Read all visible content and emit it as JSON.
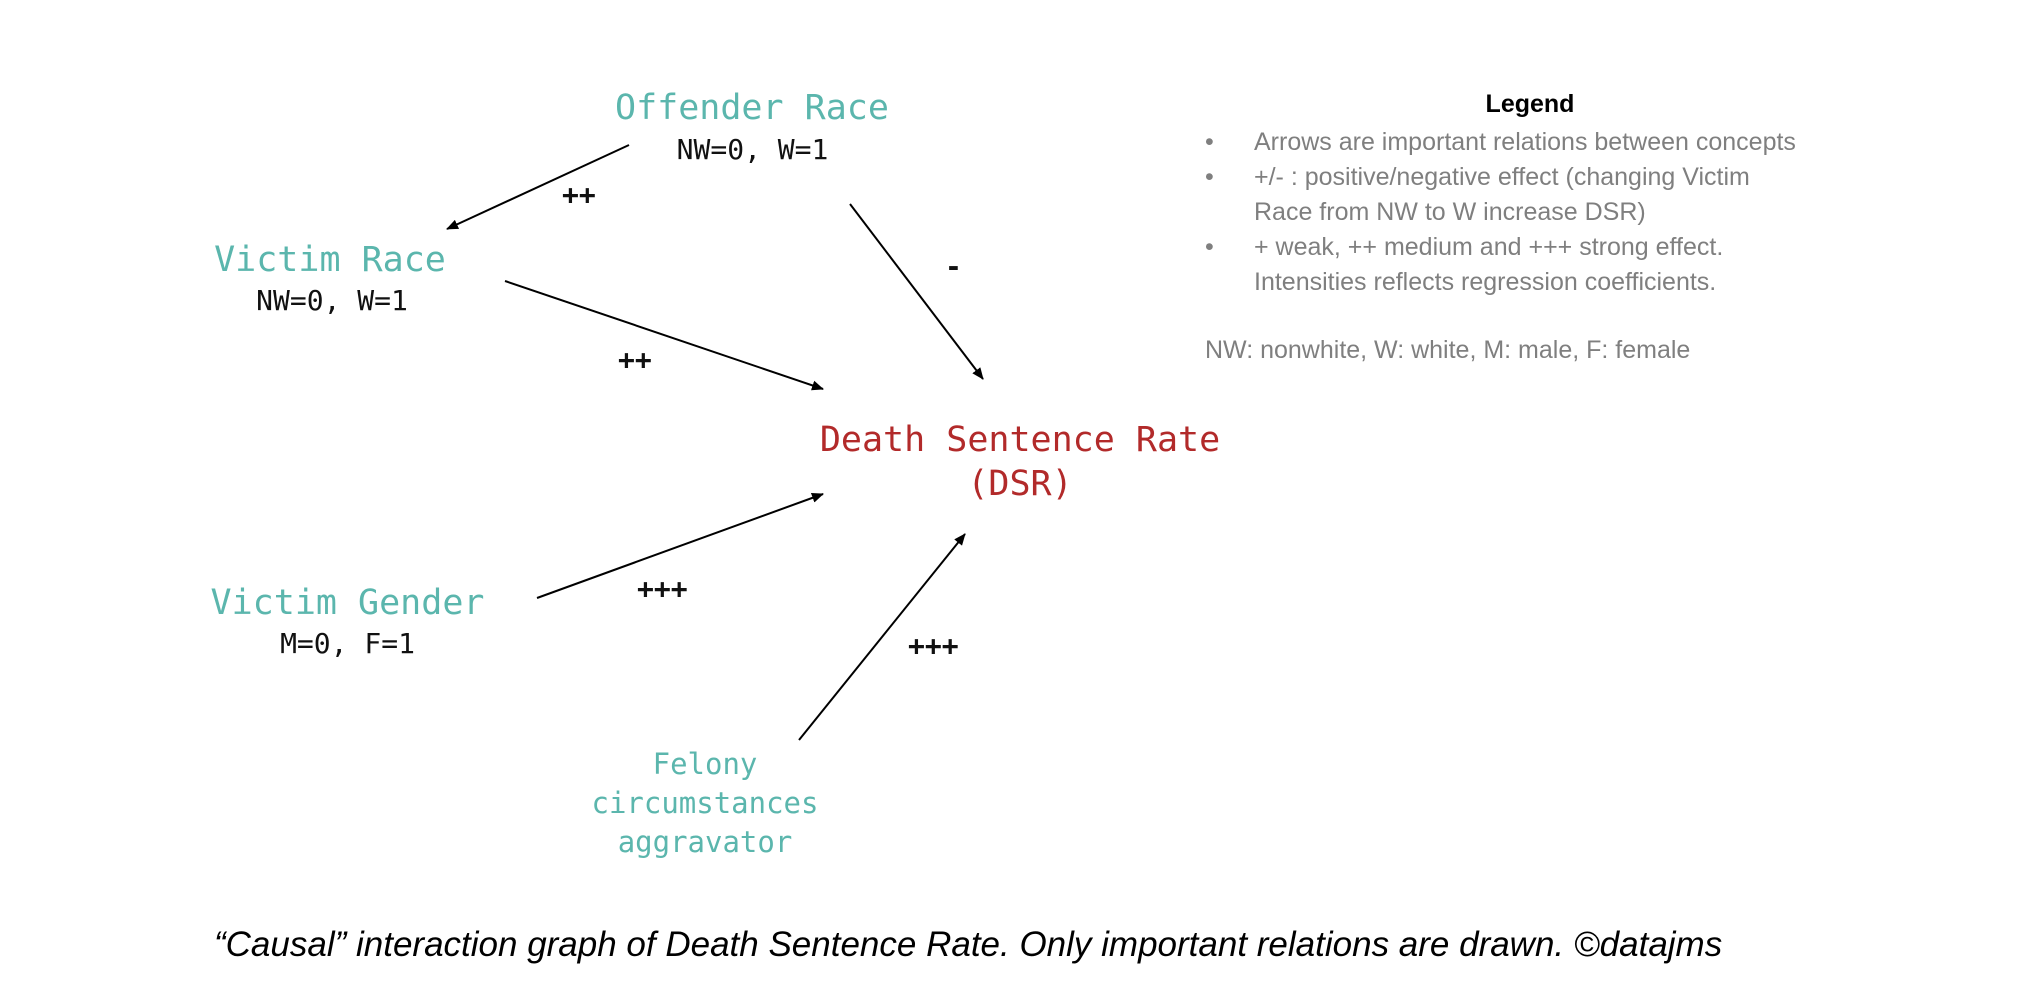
{
  "nodes": {
    "offender_race": {
      "title": "Offender Race",
      "sub": "NW=0, W=1"
    },
    "victim_race": {
      "title": "Victim Race",
      "sub": "NW=0, W=1"
    },
    "victim_gender": {
      "title": "Victim Gender",
      "sub": "M=0, F=1"
    },
    "felony": {
      "line1": "Felony",
      "line2": "circumstances",
      "line3": "aggravator"
    },
    "dsr": {
      "line1": "Death Sentence Rate",
      "line2": "(DSR)"
    }
  },
  "edges": {
    "offender_to_victim": "++",
    "offender_to_dsr": "-",
    "victim_race_to_dsr": "++",
    "victim_gender_to_dsr": "+++",
    "felony_to_dsr": "+++"
  },
  "legend": {
    "title": "Legend",
    "bullet": "•",
    "items": [
      {
        "line1": "Arrows are important relations between concepts",
        "line2": ""
      },
      {
        "line1": "+/- : positive/negative effect (changing Victim",
        "line2": "Race from NW to W increase DSR)"
      },
      {
        "line1": "+ weak, ++ medium and +++ strong effect.",
        "line2": "Intensities reflects regression coefficients."
      }
    ],
    "note": "NW: nonwhite, W: white, M: male, F: female"
  },
  "caption": "“Causal” interaction graph of Death Sentence Rate. Only important relations are drawn. ©datajms",
  "colors": {
    "node": "#5bb6ad",
    "target": "#b22a2a",
    "legend_text": "#7f7f7f",
    "arrow": "#000000"
  }
}
